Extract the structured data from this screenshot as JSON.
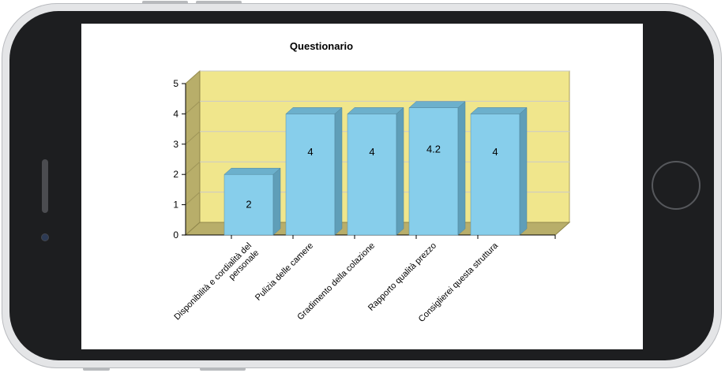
{
  "chart_data": {
    "type": "bar",
    "title": "Questionario",
    "categories": [
      "Disponibilità e cordialità del personale",
      "Pulizia delle camere",
      "Gradimento della colazione",
      "Rapporto qualità prezzo",
      "Consiglierei questa struttura"
    ],
    "category_lines": [
      [
        "Disponibilità e cordialità del",
        "personale"
      ],
      [
        "Pulizia delle camere"
      ],
      [
        "Gradimento della colazione"
      ],
      [
        "Rapporto qualità prezzo"
      ],
      [
        "Consiglierei questa struttura"
      ]
    ],
    "values": [
      2,
      4,
      4,
      4.2,
      4
    ],
    "data_labels": [
      "2",
      "4",
      "4",
      "4.2",
      "4"
    ],
    "ylim": [
      0,
      5
    ],
    "yticks": [
      "0",
      "1",
      "2",
      "3",
      "4",
      "5"
    ],
    "style": "3d",
    "grid": true,
    "colors": {
      "bar_front": "#87ceeb",
      "bar_side": "#5f9eb8",
      "bar_top": "#6cb0cc",
      "back_wall": "#f0e68c",
      "side_wall": "#b8ae6a",
      "floor": "#b8ae6a",
      "gridline": "#c9c9c9"
    }
  }
}
